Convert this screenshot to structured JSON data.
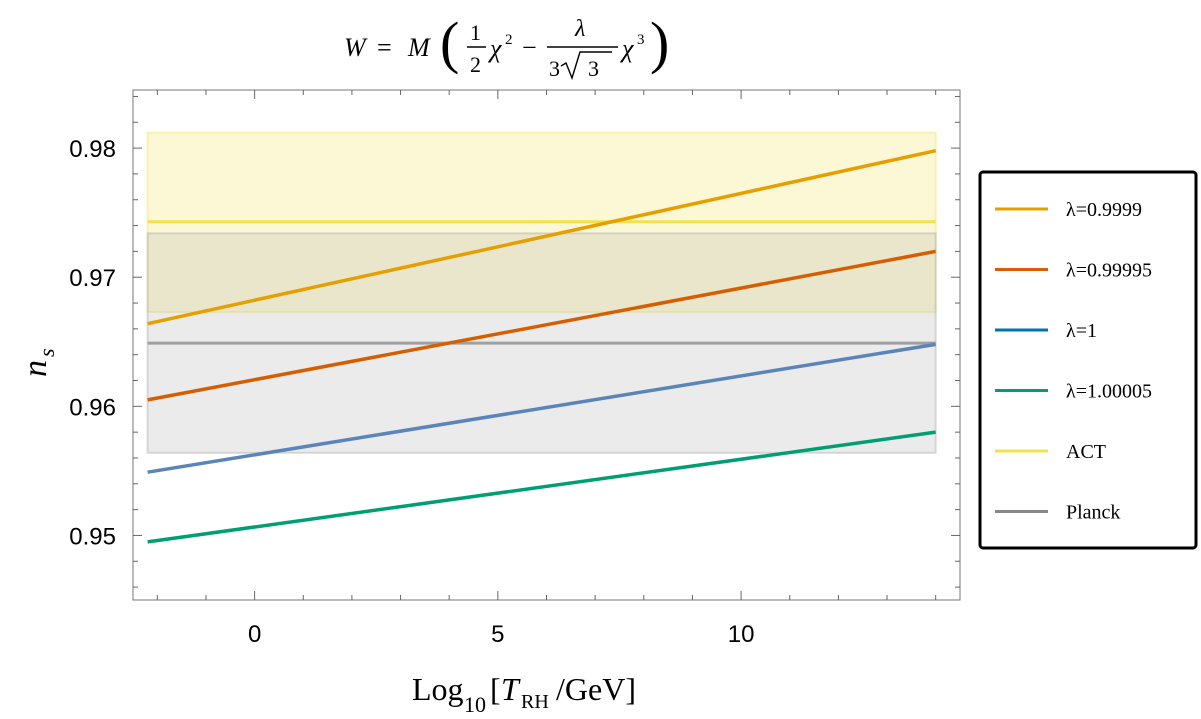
{
  "chart_data": {
    "type": "line",
    "title": "W = M (½χ² − λ/(3√3) χ³)",
    "xlabel": "Log10[T_RH/GeV]",
    "ylabel": "n_s",
    "xlim": [
      -2.5,
      14.5
    ],
    "ylim": [
      0.945,
      0.9845
    ],
    "xticks": [
      "0",
      "5",
      "10"
    ],
    "yticks": [
      "0.95",
      "0.96",
      "0.97",
      "0.98"
    ],
    "x": [
      -2.2,
      14
    ],
    "series": [
      {
        "name": "λ=0.9999",
        "color": "#e69f00",
        "values": [
          0.9664,
          0.9798
        ]
      },
      {
        "name": "λ=0.99995",
        "color": "#d55e00",
        "values": [
          0.9605,
          0.972
        ]
      },
      {
        "name": "λ=1",
        "color": "#5b84b8",
        "legend_color": "#0072b2",
        "values": [
          0.9549,
          0.9648
        ]
      },
      {
        "name": "λ=1.00005",
        "color": "#009e73",
        "values": [
          0.9495,
          0.958
        ]
      }
    ],
    "bands": [
      {
        "name": "ACT",
        "color": "#f0e442",
        "center": 0.9743,
        "range": [
          0.9673,
          0.9812
        ]
      },
      {
        "name": "Planck",
        "color": "#888888",
        "center": 0.9649,
        "range": [
          0.9564,
          0.9734
        ]
      }
    ],
    "grid": false,
    "legend_position": "right"
  }
}
